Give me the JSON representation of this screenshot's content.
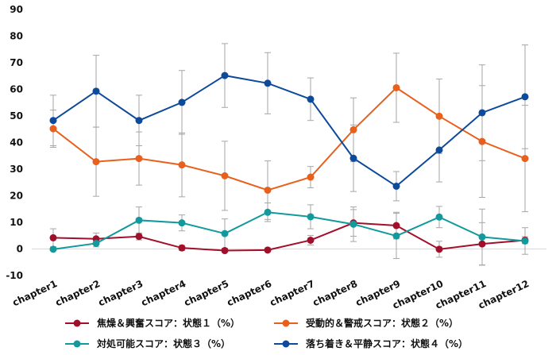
{
  "chart_data": {
    "type": "line",
    "categories": [
      "chapter1",
      "chapter2",
      "chapter3",
      "chapter4",
      "chapter5",
      "chapter6",
      "chapter7",
      "chapter8",
      "chapter9",
      "chapter10",
      "chapter11",
      "chapter12"
    ],
    "ylim": [
      -10,
      90
    ],
    "yticks": [
      -10,
      0,
      10,
      20,
      30,
      40,
      50,
      60,
      70,
      80,
      90
    ],
    "grid": false,
    "legend_position": "bottom",
    "series": [
      {
        "name": "焦燥＆興奮スコア：状態１（%）",
        "color": "#a0102a",
        "values": [
          4.2,
          3.8,
          4.7,
          0.4,
          -0.6,
          -0.4,
          3.3,
          9.8,
          8.8,
          -0.1,
          1.9,
          3.3
        ],
        "errors": [
          3.4,
          2.2,
          1.3,
          1.0,
          0.5,
          0.4,
          1.8,
          5.0,
          5.0,
          3.0,
          8.0,
          1.3
        ]
      },
      {
        "name": "受動的＆警戒スコア：状態２（%）",
        "color": "#e8601c",
        "values": [
          45.2,
          32.8,
          34.0,
          31.6,
          27.5,
          22.1,
          27.0,
          44.8,
          60.6,
          49.9,
          40.4,
          34.0
        ],
        "errors": [
          7.0,
          13.0,
          10.0,
          12.0,
          13.0,
          11.0,
          4.0,
          12.0,
          13.0,
          14.0,
          21.0,
          20.0
        ]
      },
      {
        "name": "対処可能スコア：状態３（%）",
        "color": "#12999c",
        "values": [
          -0.1,
          2.1,
          10.8,
          9.8,
          5.8,
          13.8,
          12.1,
          9.3,
          4.9,
          12.0,
          4.5,
          3.0
        ],
        "errors": [
          0.4,
          1.3,
          5.0,
          3.0,
          5.5,
          3.5,
          4.5,
          6.5,
          8.5,
          4.0,
          10.5,
          5.0
        ]
      },
      {
        "name": "落ち着き＆平静スコア：状態４（%）",
        "color": "#0d4a9a",
        "values": [
          48.3,
          59.3,
          48.3,
          55.1,
          65.2,
          62.3,
          56.3,
          34.1,
          23.6,
          37.2,
          51.2,
          57.2
        ],
        "errors": [
          9.5,
          13.5,
          9.5,
          12.0,
          12.0,
          11.5,
          8.0,
          12.5,
          5.5,
          12.0,
          18.0,
          19.5
        ]
      }
    ]
  }
}
